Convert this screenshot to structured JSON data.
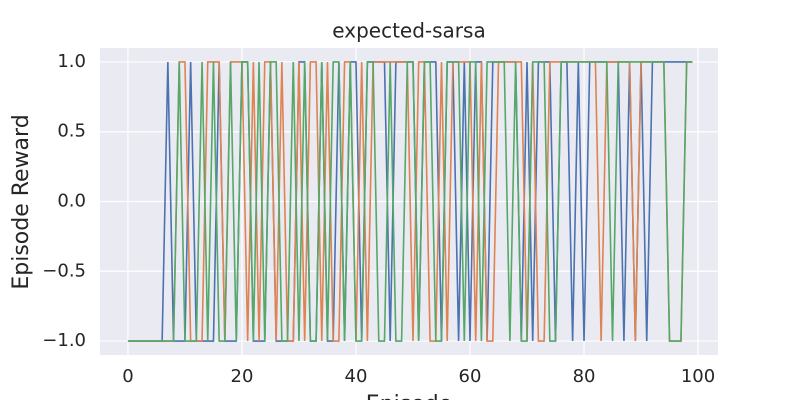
{
  "chart_data": {
    "type": "line",
    "title": "expected-sarsa",
    "x_label": "Episode",
    "y_label": "Episode Reward",
    "x": [
      0,
      1,
      2,
      3,
      4,
      5,
      6,
      7,
      8,
      9,
      10,
      11,
      12,
      13,
      14,
      15,
      16,
      17,
      18,
      19,
      20,
      21,
      22,
      23,
      24,
      25,
      26,
      27,
      28,
      29,
      30,
      31,
      32,
      33,
      34,
      35,
      36,
      37,
      38,
      39,
      40,
      41,
      42,
      43,
      44,
      45,
      46,
      47,
      48,
      49,
      50,
      51,
      52,
      53,
      54,
      55,
      56,
      57,
      58,
      59,
      60,
      61,
      62,
      63,
      64,
      65,
      66,
      67,
      68,
      69,
      70,
      71,
      72,
      73,
      74,
      75,
      76,
      77,
      78,
      79,
      80,
      81,
      82,
      83,
      84,
      85,
      86,
      87,
      88,
      89,
      90,
      91,
      92,
      93,
      94,
      95,
      96,
      97,
      98,
      99
    ],
    "series": [
      {
        "color": "#4c72b0",
        "values": [
          -1,
          -1,
          -1,
          -1,
          -1,
          -1,
          -1,
          1,
          -1,
          -1,
          -1,
          1,
          -1,
          -1,
          -1,
          -1,
          1,
          -1,
          -1,
          -1,
          1,
          1,
          -1,
          -1,
          -1,
          1,
          -1,
          -1,
          -1,
          -1,
          1,
          1,
          -1,
          -1,
          1,
          -1,
          -1,
          1,
          -1,
          1,
          1,
          -1,
          1,
          1,
          1,
          1,
          -1,
          1,
          1,
          1,
          1,
          -1,
          1,
          1,
          1,
          -1,
          1,
          1,
          -1,
          1,
          -1,
          1,
          1,
          -1,
          1,
          1,
          1,
          1,
          1,
          -1,
          1,
          -1,
          1,
          1,
          1,
          -1,
          1,
          1,
          -1,
          1,
          -1,
          1,
          1,
          1,
          1,
          1,
          1,
          -1,
          1,
          -1,
          1,
          -1,
          1,
          1,
          1,
          1,
          1,
          1,
          1,
          1
        ]
      },
      {
        "color": "#dd8452",
        "values": [
          -1,
          -1,
          -1,
          -1,
          -1,
          -1,
          -1,
          -1,
          -1,
          1,
          1,
          -1,
          -1,
          -1,
          1,
          1,
          1,
          -1,
          1,
          1,
          1,
          -1,
          1,
          -1,
          1,
          1,
          -1,
          1,
          -1,
          -1,
          1,
          -1,
          1,
          1,
          -1,
          1,
          -1,
          -1,
          1,
          1,
          -1,
          1,
          -1,
          1,
          1,
          1,
          1,
          1,
          1,
          1,
          -1,
          1,
          1,
          -1,
          -1,
          1,
          -1,
          1,
          1,
          1,
          1,
          -1,
          1,
          -1,
          -1,
          1,
          1,
          1,
          1,
          1,
          -1,
          1,
          -1,
          -1,
          1,
          1,
          1,
          1,
          1,
          1,
          1,
          1,
          1,
          -1,
          1,
          1,
          1,
          1,
          1,
          -1,
          1,
          1,
          1,
          1,
          1,
          -1,
          -1,
          -1,
          1,
          1
        ]
      },
      {
        "color": "#55a868",
        "values": [
          -1,
          -1,
          -1,
          -1,
          -1,
          -1,
          -1,
          -1,
          -1,
          1,
          -1,
          -1,
          -1,
          1,
          -1,
          1,
          -1,
          -1,
          1,
          -1,
          1,
          1,
          -1,
          1,
          -1,
          1,
          1,
          -1,
          -1,
          1,
          -1,
          1,
          -1,
          -1,
          1,
          -1,
          1,
          1,
          -1,
          1,
          -1,
          -1,
          1,
          1,
          -1,
          -1,
          1,
          -1,
          -1,
          1,
          1,
          -1,
          1,
          1,
          -1,
          -1,
          1,
          1,
          1,
          -1,
          1,
          1,
          -1,
          1,
          1,
          1,
          1,
          -1,
          1,
          -1,
          -1,
          1,
          1,
          1,
          -1,
          -1,
          1,
          1,
          1,
          1,
          1,
          1,
          1,
          1,
          1,
          -1,
          1,
          1,
          1,
          1,
          1,
          1,
          1,
          1,
          1,
          -1,
          -1,
          -1,
          1,
          1
        ]
      }
    ],
    "xlim": [
      -4.9,
      103.5
    ],
    "ylim": [
      -1.1,
      1.1
    ],
    "xticks": [
      0,
      20,
      40,
      60,
      80,
      100
    ],
    "yticks": [
      {
        "value": -1,
        "label": "−1.0"
      },
      {
        "value": -0.5,
        "label": "−0.5"
      },
      {
        "value": 0,
        "label": "0.0"
      },
      {
        "value": 0.5,
        "label": "0.5"
      },
      {
        "value": 1,
        "label": "1.0"
      }
    ],
    "grid": true
  }
}
